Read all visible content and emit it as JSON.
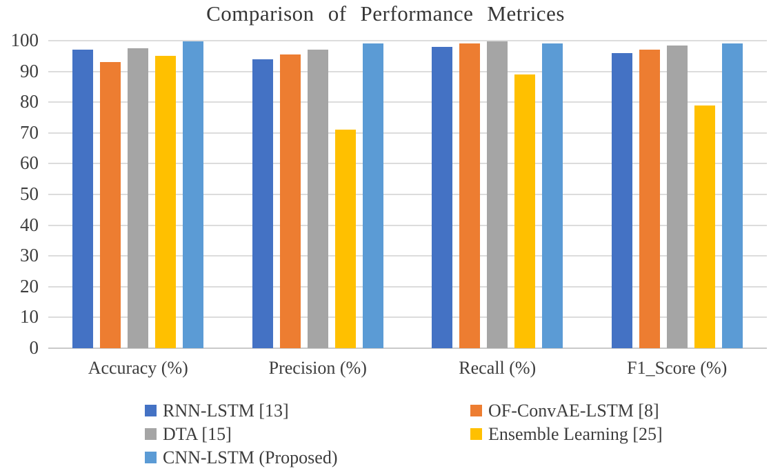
{
  "chart_data": {
    "type": "bar",
    "title": "Comparison of Performance Metrices",
    "categories": [
      "Accuracy (%)",
      "Precision (%)",
      "Recall (%)",
      "F1_Score (%)"
    ],
    "series": [
      {
        "name": "RNN-LSTM [13]",
        "color": "#4472C4",
        "values": [
          97,
          94,
          98,
          96
        ]
      },
      {
        "name": "OF-ConvAE-LSTM [8]",
        "color": "#ED7D31",
        "values": [
          93,
          95.6,
          99,
          97
        ]
      },
      {
        "name": "DTA [15]",
        "color": "#A5A5A5",
        "values": [
          97.5,
          97.2,
          99.8,
          98.4
        ]
      },
      {
        "name": "Ensemble Learning [25]",
        "color": "#FFC000",
        "values": [
          95,
          71,
          89,
          79
        ]
      },
      {
        "name": "CNN-LSTM (Proposed)",
        "color": "#5B9BD5",
        "values": [
          99.7,
          99,
          99,
          99
        ]
      }
    ],
    "xlabel": "",
    "ylabel": "",
    "ylim": [
      0,
      100
    ],
    "yticks": [
      0,
      10,
      20,
      30,
      40,
      50,
      60,
      70,
      80,
      90,
      100
    ],
    "grid": true,
    "legend_position": "bottom",
    "colors": {
      "gridline": "#dcdcdc",
      "axis_text": "#3d3d3d",
      "title_text": "#363636",
      "background": "#ffffff"
    }
  }
}
